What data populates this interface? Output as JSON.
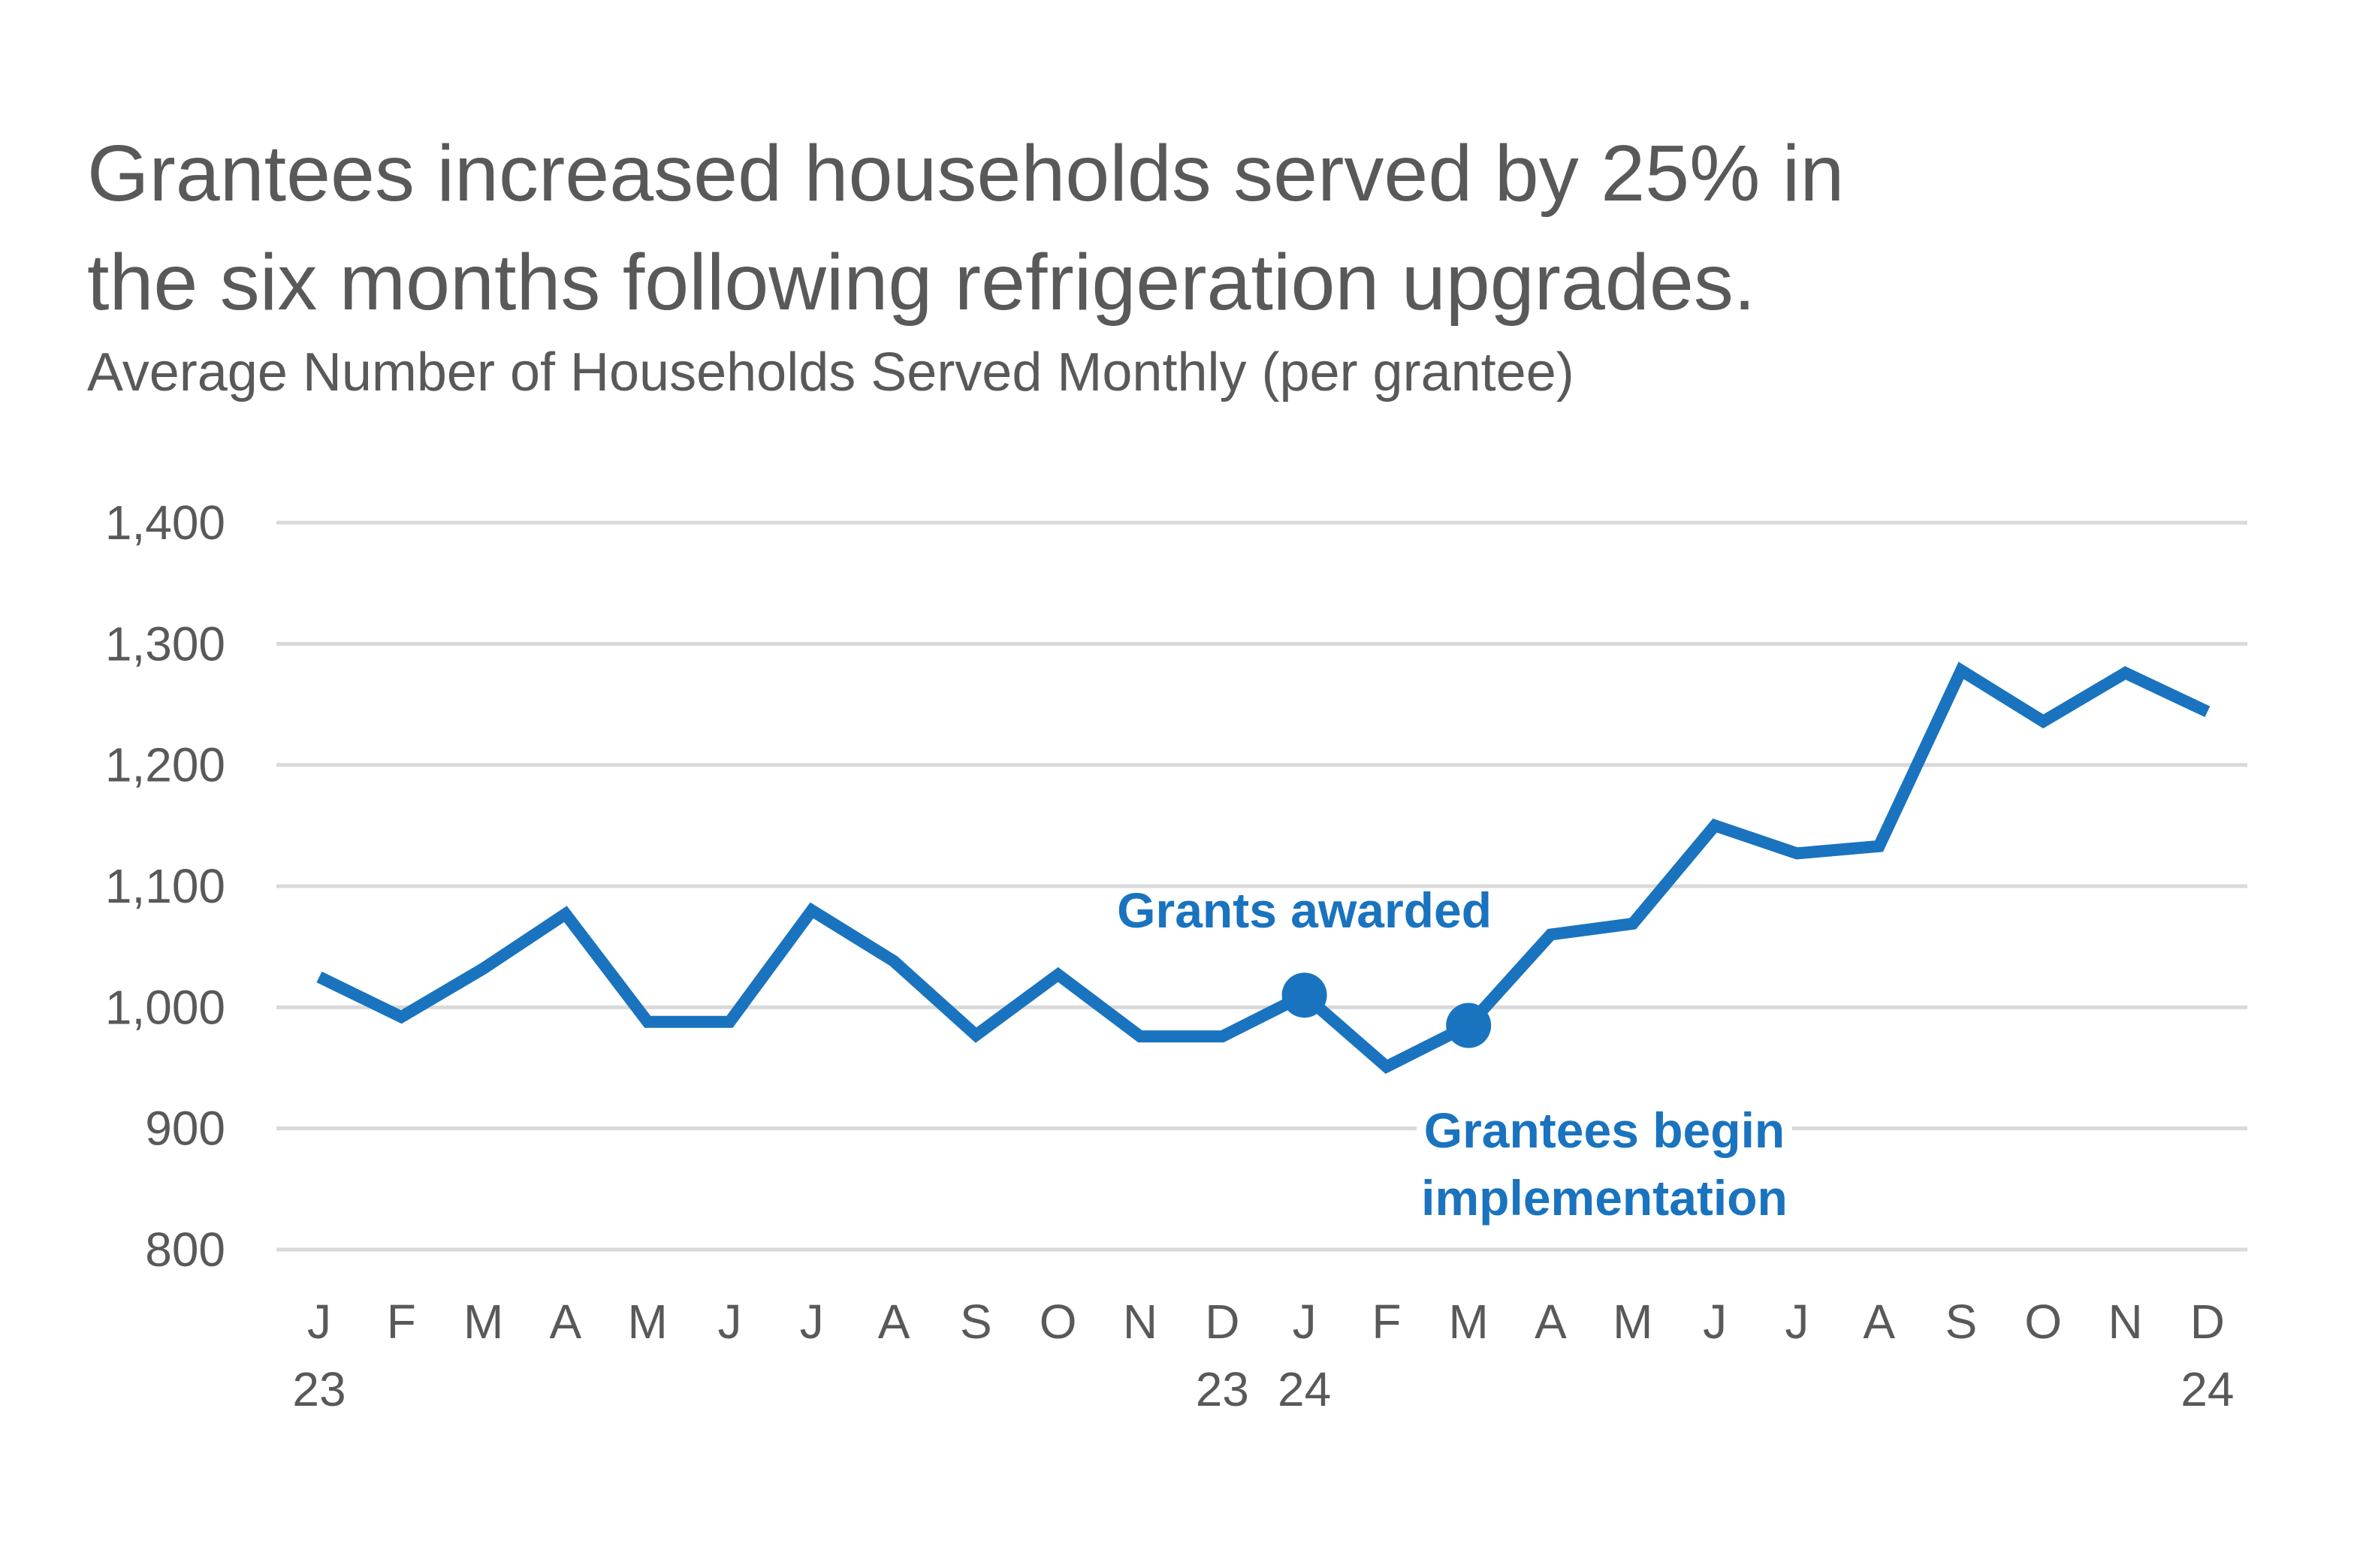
{
  "chart_data": {
    "type": "line",
    "title": "Grantees increased households served by 25% in the six months following refrigeration upgrades.",
    "title_lines": [
      "Grantees increased households served by 25% in",
      "the six months following refrigeration upgrades."
    ],
    "subtitle": "Average Number of Households Served Monthly (per grantee)",
    "xlabel": "",
    "ylabel": "",
    "ylim": [
      800,
      1400
    ],
    "yticks": [
      800,
      900,
      1000,
      1100,
      1200,
      1300,
      1400
    ],
    "ytick_labels": [
      "800",
      "900",
      "1,000",
      "1,100",
      "1,200",
      "1,300",
      "1,400"
    ],
    "grid": true,
    "categories": [
      "J",
      "F",
      "M",
      "A",
      "M",
      "J",
      "J",
      "A",
      "S",
      "O",
      "N",
      "D",
      "J",
      "F",
      "M",
      "A",
      "M",
      "J",
      "J",
      "A",
      "S",
      "O",
      "N",
      "D"
    ],
    "year_labels": [
      {
        "index": 0,
        "label": "23"
      },
      {
        "index": 11,
        "label": "23"
      },
      {
        "index": 12,
        "label": "24"
      },
      {
        "index": 23,
        "label": "24"
      }
    ],
    "series": [
      {
        "name": "Average Number of Households Served Monthly",
        "color": "#1a73be",
        "values": [
          1025,
          992,
          1032,
          1077,
          988,
          988,
          1080,
          1038,
          977,
          1027,
          976,
          976,
          1010,
          951,
          985,
          1060,
          1069,
          1150,
          1127,
          1133,
          1278,
          1236,
          1276,
          1244
        ]
      }
    ],
    "annotations": [
      {
        "index": 12,
        "lines": [
          "Grants awarded"
        ],
        "placement": "above"
      },
      {
        "index": 14,
        "lines": [
          "Grantees begin",
          "implementation"
        ],
        "placement": "below"
      }
    ]
  }
}
